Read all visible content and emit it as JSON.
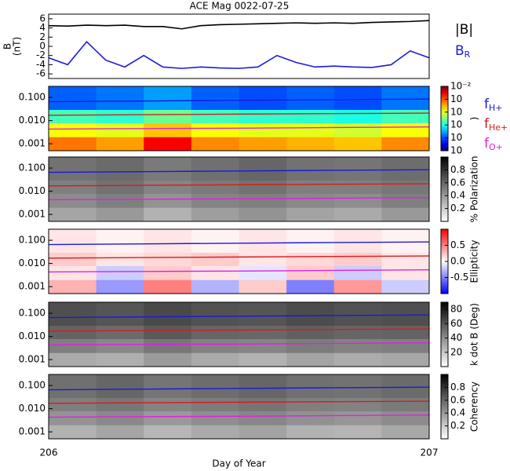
{
  "chart_data": [
    {
      "type": "line",
      "title": "ACE Mag 0022-07-25",
      "ylabel": "B",
      "ylabel_unit": "(nT)",
      "xlim": [
        206,
        207
      ],
      "ylim": [
        -7,
        7
      ],
      "yticks": [
        -6,
        -4,
        -2,
        0,
        2,
        4,
        6
      ],
      "x": [
        206,
        206.05,
        206.1,
        206.15,
        206.2,
        206.25,
        206.3,
        206.35,
        206.4,
        206.45,
        206.5,
        206.55,
        206.6,
        206.65,
        206.7,
        206.75,
        206.8,
        206.85,
        206.9,
        206.95,
        207
      ],
      "series": [
        {
          "name": "|B|",
          "color": "#000000",
          "values": [
            4.5,
            4.4,
            4.6,
            4.5,
            4.6,
            4.3,
            4.3,
            3.8,
            4.5,
            4.7,
            4.8,
            4.9,
            5,
            5.1,
            5,
            5.1,
            5,
            5.2,
            5.3,
            5.4,
            5.6
          ]
        },
        {
          "name": "B",
          "name_sub": "R",
          "color": "#1a1adc",
          "values": [
            -2.5,
            -4,
            1,
            -3,
            -4.5,
            -2,
            -4.5,
            -4.8,
            -4.5,
            -4.7,
            -4.8,
            -4.5,
            -2,
            -3.5,
            -4.5,
            -4.3,
            -4.5,
            -4.6,
            -4,
            -1,
            -2.5
          ]
        }
      ]
    },
    {
      "type": "heatmap",
      "ylog": true,
      "xlim": [
        206,
        207
      ],
      "ylim": [
        0.0005,
        0.3
      ],
      "yticks": [
        0.001,
        {
          "value": 0.01,
          "label": "0.010"
        },
        {
          "value": 0.1,
          "label": "0.100"
        }
      ],
      "xbins": [
        206,
        206.125,
        206.25,
        206.375,
        206.5,
        206.625,
        206.75,
        206.875,
        207
      ],
      "ybins": [
        0.0005,
        0.002,
        0.008,
        0.03,
        0.3
      ],
      "colormap": "jet",
      "clim": [
        -7,
        -2
      ],
      "clabel": ")",
      "cticks": [
        {
          "value": -2,
          "label": "10⁻²"
        },
        {
          "value": -3,
          "label": "10"
        },
        {
          "value": -4,
          "label": "10"
        },
        {
          "value": -5,
          "label": "10"
        },
        {
          "value": -6,
          "label": "10"
        },
        {
          "value": -7,
          "label": "10"
        }
      ],
      "z": [
        [
          -3.2,
          -3.4,
          -2.6,
          -3.3,
          -3.4,
          -3.5,
          -3.6,
          -3.3
        ],
        [
          -3.9,
          -4,
          -3.6,
          -3.9,
          -4,
          -4,
          -4.1,
          -3.9
        ],
        [
          -4.8,
          -4.9,
          -4.6,
          -4.8,
          -4.9,
          -4.9,
          -5,
          -4.8
        ],
        [
          -5.9,
          -5.8,
          -5.6,
          -5.9,
          -6,
          -5.9,
          -6,
          -5.8
        ]
      ],
      "legend": true,
      "series": [
        {
          "name": "f",
          "name_sub": "H+",
          "color": "#1a1adc",
          "x": [
            206,
            206.25,
            206.5,
            206.75,
            207
          ],
          "values": [
            0.065,
            0.07,
            0.075,
            0.08,
            0.085
          ]
        },
        {
          "name": "f",
          "name_sub": "He+",
          "color": "#dc1a1a",
          "x": [
            206,
            206.25,
            206.5,
            206.75,
            207
          ],
          "values": [
            0.017,
            0.018,
            0.019,
            0.02,
            0.021
          ]
        },
        {
          "name": "f",
          "name_sub": "O+",
          "color": "#e020e0",
          "x": [
            206,
            206.25,
            206.5,
            206.75,
            207
          ],
          "values": [
            0.0043,
            0.0045,
            0.0047,
            0.005,
            0.0053
          ]
        }
      ]
    },
    {
      "type": "heatmap",
      "ylog": true,
      "xlim": [
        206,
        207
      ],
      "ylim": [
        0.0005,
        0.3
      ],
      "yticks": [
        0.001,
        {
          "value": 0.01,
          "label": "0.010"
        },
        {
          "value": 0.1,
          "label": "0.100"
        }
      ],
      "xbins": [
        206,
        206.125,
        206.25,
        206.375,
        206.5,
        206.625,
        206.75,
        206.875,
        207
      ],
      "ybins": [
        0.0005,
        0.002,
        0.008,
        0.03,
        0.3
      ],
      "colormap": "gray",
      "clim": [
        0,
        1
      ],
      "clabel": "% Polarization",
      "cticks": [
        0.2,
        0.4,
        0.6,
        0.8
      ],
      "z": [
        [
          0.35,
          0.4,
          0.3,
          0.38,
          0.42,
          0.36,
          0.33,
          0.4
        ],
        [
          0.45,
          0.5,
          0.42,
          0.48,
          0.5,
          0.46,
          0.44,
          0.5
        ],
        [
          0.5,
          0.55,
          0.48,
          0.52,
          0.55,
          0.5,
          0.5,
          0.53
        ],
        [
          0.55,
          0.58,
          0.52,
          0.56,
          0.6,
          0.55,
          0.54,
          0.57
        ]
      ],
      "series": [
        {
          "color": "#1a1adc",
          "x": [
            206,
            206.25,
            206.5,
            206.75,
            207
          ],
          "values": [
            0.065,
            0.07,
            0.075,
            0.08,
            0.085
          ]
        },
        {
          "color": "#dc1a1a",
          "x": [
            206,
            206.25,
            206.5,
            206.75,
            207
          ],
          "values": [
            0.017,
            0.018,
            0.019,
            0.02,
            0.021
          ]
        },
        {
          "color": "#e020e0",
          "x": [
            206,
            206.25,
            206.5,
            206.75,
            207
          ],
          "values": [
            0.0043,
            0.0045,
            0.0047,
            0.005,
            0.0053
          ]
        }
      ]
    },
    {
      "type": "heatmap",
      "ylog": true,
      "xlim": [
        206,
        207
      ],
      "ylim": [
        0.0005,
        0.3
      ],
      "yticks": [
        0.001,
        {
          "value": 0.01,
          "label": "0.010"
        },
        {
          "value": 0.1,
          "label": "0.100"
        }
      ],
      "xbins": [
        206,
        206.125,
        206.25,
        206.375,
        206.5,
        206.625,
        206.75,
        206.875,
        207
      ],
      "ybins": [
        0.0005,
        0.002,
        0.008,
        0.03,
        0.3
      ],
      "colormap": "bwr",
      "clim": [
        -1,
        1
      ],
      "clabel": "Ellipticity",
      "cticks": [
        -0.5,
        {
          "value": 0,
          "label": "0.0"
        },
        0.5
      ],
      "z": [
        [
          0.3,
          -0.4,
          0.5,
          -0.3,
          0.2,
          -0.5,
          0.4,
          -0.2
        ],
        [
          0.1,
          -0.2,
          0.2,
          0.1,
          -0.1,
          0.2,
          -0.2,
          0.1
        ],
        [
          0.2,
          0.1,
          0.15,
          0.2,
          0.1,
          0.15,
          0.2,
          0.1
        ],
        [
          0.1,
          0.05,
          0.1,
          0.05,
          0.1,
          0.05,
          0.1,
          0.05
        ]
      ],
      "series": [
        {
          "color": "#1a1adc",
          "x": [
            206,
            206.25,
            206.5,
            206.75,
            207
          ],
          "values": [
            0.065,
            0.07,
            0.075,
            0.08,
            0.085
          ]
        },
        {
          "color": "#dc1a1a",
          "x": [
            206,
            206.25,
            206.5,
            206.75,
            207
          ],
          "values": [
            0.017,
            0.018,
            0.019,
            0.02,
            0.021
          ]
        },
        {
          "color": "#e020e0",
          "x": [
            206,
            206.25,
            206.5,
            206.75,
            207
          ],
          "values": [
            0.0043,
            0.0045,
            0.0047,
            0.005,
            0.0053
          ]
        }
      ]
    },
    {
      "type": "heatmap",
      "ylog": true,
      "xlim": [
        206,
        207
      ],
      "ylim": [
        0.0005,
        0.3
      ],
      "yticks": [
        0.001,
        {
          "value": 0.01,
          "label": "0.010"
        },
        {
          "value": 0.1,
          "label": "0.100"
        }
      ],
      "xbins": [
        206,
        206.125,
        206.25,
        206.375,
        206.5,
        206.625,
        206.75,
        206.875,
        207
      ],
      "ybins": [
        0.0005,
        0.002,
        0.008,
        0.03,
        0.3
      ],
      "colormap": "gray",
      "clim": [
        0,
        90
      ],
      "clabel": "k dot B (Deg)",
      "cticks": [
        20,
        40,
        60,
        80
      ],
      "z": [
        [
          30,
          28,
          35,
          30,
          27,
          32,
          29,
          31
        ],
        [
          45,
          42,
          48,
          44,
          43,
          46,
          44,
          45
        ],
        [
          55,
          52,
          58,
          54,
          53,
          56,
          54,
          55
        ],
        [
          62,
          60,
          64,
          61,
          60,
          63,
          61,
          62
        ]
      ],
      "series": [
        {
          "color": "#1a1adc",
          "x": [
            206,
            206.25,
            206.5,
            206.75,
            207
          ],
          "values": [
            0.065,
            0.07,
            0.075,
            0.08,
            0.085
          ]
        },
        {
          "color": "#dc1a1a",
          "x": [
            206,
            206.25,
            206.5,
            206.75,
            207
          ],
          "values": [
            0.017,
            0.018,
            0.019,
            0.02,
            0.021
          ]
        },
        {
          "color": "#e020e0",
          "x": [
            206,
            206.25,
            206.5,
            206.75,
            207
          ],
          "values": [
            0.0043,
            0.0045,
            0.0047,
            0.005,
            0.0053
          ]
        }
      ]
    },
    {
      "type": "heatmap",
      "ylog": true,
      "xlim": [
        206,
        207
      ],
      "ylim": [
        0.0005,
        0.3
      ],
      "yticks": [
        0.001,
        {
          "value": 0.01,
          "label": "0.010"
        },
        {
          "value": 0.1,
          "label": "0.100"
        }
      ],
      "xbins": [
        206,
        206.125,
        206.25,
        206.375,
        206.5,
        206.625,
        206.75,
        206.875,
        207
      ],
      "ybins": [
        0.0005,
        0.002,
        0.008,
        0.03,
        0.3
      ],
      "colormap": "gray",
      "clim": [
        0,
        1
      ],
      "clabel": "Coherency",
      "cticks": [
        0.2,
        0.4,
        0.6,
        0.8
      ],
      "z": [
        [
          0.3,
          0.35,
          0.28,
          0.33,
          0.36,
          0.3,
          0.29,
          0.34
        ],
        [
          0.42,
          0.46,
          0.4,
          0.44,
          0.47,
          0.43,
          0.41,
          0.45
        ],
        [
          0.5,
          0.53,
          0.48,
          0.51,
          0.54,
          0.5,
          0.49,
          0.52
        ],
        [
          0.56,
          0.6,
          0.54,
          0.57,
          0.6,
          0.56,
          0.55,
          0.58
        ]
      ],
      "xticks": [
        206,
        207
      ],
      "xlabel": "Day of Year",
      "series": [
        {
          "color": "#1a1adc",
          "x": [
            206,
            206.25,
            206.5,
            206.75,
            207
          ],
          "values": [
            0.065,
            0.07,
            0.075,
            0.08,
            0.085
          ]
        },
        {
          "color": "#dc1a1a",
          "x": [
            206,
            206.25,
            206.5,
            206.75,
            207
          ],
          "values": [
            0.017,
            0.018,
            0.019,
            0.02,
            0.021
          ]
        },
        {
          "color": "#e020e0",
          "x": [
            206,
            206.25,
            206.5,
            206.75,
            207
          ],
          "values": [
            0.0043,
            0.0045,
            0.0047,
            0.005,
            0.0053
          ]
        }
      ]
    }
  ]
}
